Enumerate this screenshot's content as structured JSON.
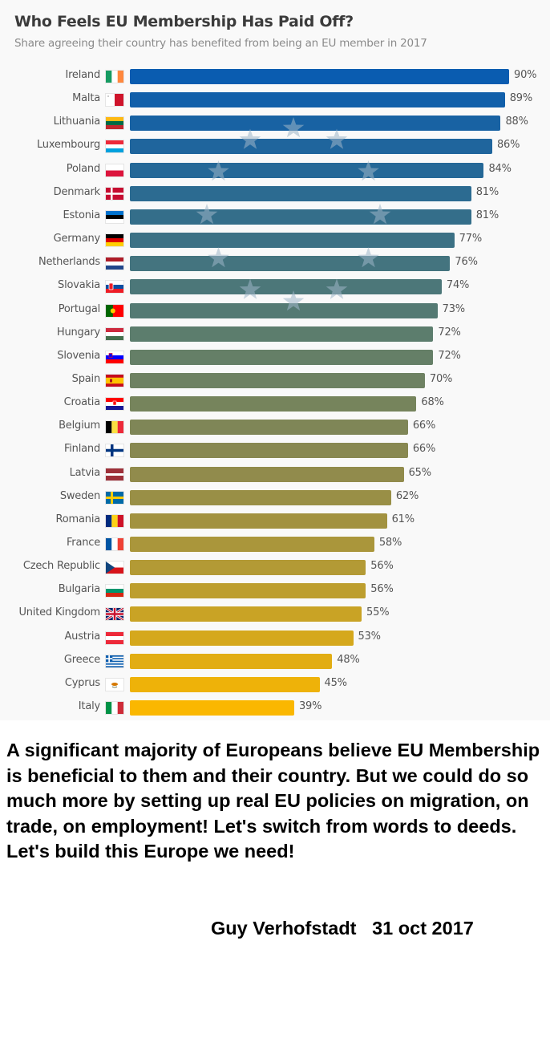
{
  "chart_data": {
    "type": "bar",
    "orientation": "horizontal",
    "title": "Who Feels EU Membership Has Paid Off?",
    "subtitle": "Share agreeing their country has benefited from being an EU member in 2017",
    "xlabel": "",
    "ylabel": "",
    "xlim": [
      0,
      100
    ],
    "grid": false,
    "value_suffix": "%",
    "categories": [
      "Ireland",
      "Malta",
      "Lithuania",
      "Luxembourg",
      "Poland",
      "Denmark",
      "Estonia",
      "Germany",
      "Netherlands",
      "Slovakia",
      "Portugal",
      "Hungary",
      "Slovenia",
      "Spain",
      "Croatia",
      "Belgium",
      "Finland",
      "Latvia",
      "Sweden",
      "Romania",
      "France",
      "Czech Republic",
      "Bulgaria",
      "United Kingdom",
      "Austria",
      "Greece",
      "Cyprus",
      "Italy"
    ],
    "values": [
      90,
      89,
      88,
      86,
      84,
      81,
      81,
      77,
      76,
      74,
      73,
      72,
      72,
      70,
      68,
      66,
      66,
      65,
      62,
      61,
      58,
      56,
      56,
      55,
      53,
      48,
      45,
      39
    ],
    "data_labels": [
      "90%",
      "89%",
      "88%",
      "86%",
      "84%",
      "81%",
      "81%",
      "77%",
      "76%",
      "74%",
      "73%",
      "72%",
      "72%",
      "70%",
      "68%",
      "66%",
      "66%",
      "65%",
      "62%",
      "61%",
      "58%",
      "56%",
      "56%",
      "55%",
      "53%",
      "48%",
      "45%",
      "39%"
    ],
    "flags": [
      "flag-ireland-icon",
      "flag-malta-icon",
      "flag-lithuania-icon",
      "flag-luxembourg-icon",
      "flag-poland-icon",
      "flag-denmark-icon",
      "flag-estonia-icon",
      "flag-germany-icon",
      "flag-netherlands-icon",
      "flag-slovakia-icon",
      "flag-portugal-icon",
      "flag-hungary-icon",
      "flag-slovenia-icon",
      "flag-spain-icon",
      "flag-croatia-icon",
      "flag-belgium-icon",
      "flag-finland-icon",
      "flag-latvia-icon",
      "flag-sweden-icon",
      "flag-romania-icon",
      "flag-france-icon",
      "flag-czech-republic-icon",
      "flag-bulgaria-icon",
      "flag-united-kingdom-icon",
      "flag-austria-icon",
      "flag-greece-icon",
      "flag-cyprus-icon",
      "flag-italy-icon"
    ],
    "color_gradient": [
      "#0a5cb0",
      "#2f6c8e",
      "#5a7d6e",
      "#8a8850",
      "#b89c32",
      "#fab700"
    ]
  },
  "quote": {
    "text": "A significant majority of Europeans believe EU Membership is beneficial to them and their country. But we could do so much more by setting up real EU policies on migration, on trade, on employment! Let's switch from words to deeds. Let's build this Europe we need!"
  },
  "signature": {
    "author": "Guy Verhofstadt",
    "date": "31 oct 2017"
  },
  "colors": {
    "title": "#3b3b3b",
    "subtitle": "#8a8a8a",
    "label": "#555555",
    "panel_background": "#f9f9f9",
    "star": "#9fb6c8"
  }
}
